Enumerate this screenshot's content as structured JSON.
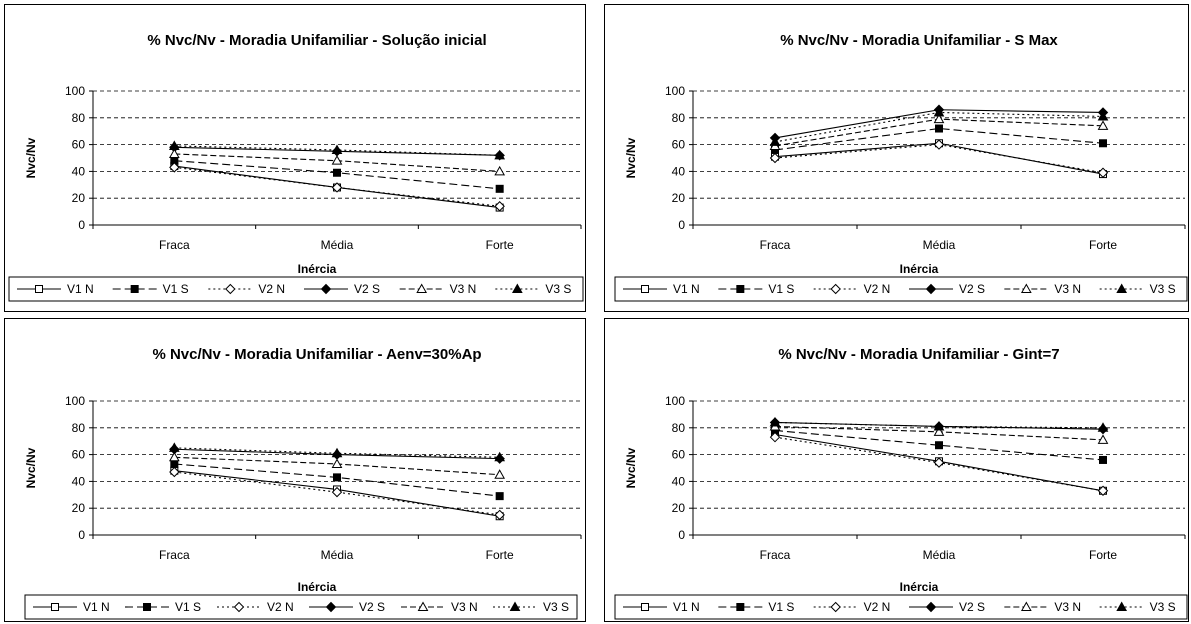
{
  "legend_styles": {
    "V1 N": {
      "dash": "",
      "marker": "square",
      "fill": "#ffffff"
    },
    "V1 S": {
      "dash": "8,4",
      "marker": "square",
      "fill": "#000000"
    },
    "V2 N": {
      "dash": "2,3",
      "marker": "diamond",
      "fill": "#ffffff"
    },
    "V2 S": {
      "dash": "",
      "marker": "diamond",
      "fill": "#000000"
    },
    "V3 N": {
      "dash": "6,3",
      "marker": "triangle",
      "fill": "#ffffff"
    },
    "V3 S": {
      "dash": "2,3",
      "marker": "triangle",
      "fill": "#000000"
    }
  },
  "chart_data": [
    {
      "type": "line",
      "title": "% Nvc/Nv - Moradia Unifamiliar - Solução inicial",
      "xlabel": "Inércia",
      "ylabel": "Nvc/Nv",
      "categories": [
        "Fraca",
        "Média",
        "Forte"
      ],
      "ylim": [
        0,
        100
      ],
      "yticks": [
        0,
        20,
        40,
        60,
        80,
        100
      ],
      "grid": true,
      "legend_position": "bottom",
      "series": [
        {
          "name": "V1 N",
          "values": [
            44,
            28,
            13
          ]
        },
        {
          "name": "V1 S",
          "values": [
            48,
            39,
            27
          ]
        },
        {
          "name": "V2 N",
          "values": [
            43,
            28,
            14
          ]
        },
        {
          "name": "V2 S",
          "values": [
            58,
            55,
            52
          ]
        },
        {
          "name": "V3 N",
          "values": [
            53,
            48,
            40
          ]
        },
        {
          "name": "V3 S",
          "values": [
            59,
            56,
            52
          ]
        }
      ]
    },
    {
      "type": "line",
      "title": "% Nvc/Nv - Moradia Unifamiliar - S Max",
      "xlabel": "Inércia",
      "ylabel": "Nvc/Nv",
      "categories": [
        "Fraca",
        "Média",
        "Forte"
      ],
      "ylim": [
        0,
        100
      ],
      "yticks": [
        0,
        20,
        40,
        60,
        80,
        100
      ],
      "grid": true,
      "legend_position": "bottom",
      "series": [
        {
          "name": "V1 N",
          "values": [
            51,
            61,
            38
          ]
        },
        {
          "name": "V1 S",
          "values": [
            56,
            72,
            61
          ]
        },
        {
          "name": "V2 N",
          "values": [
            50,
            60,
            39
          ]
        },
        {
          "name": "V2 S",
          "values": [
            65,
            86,
            84
          ]
        },
        {
          "name": "V3 N",
          "values": [
            59,
            79,
            74
          ]
        },
        {
          "name": "V3 S",
          "values": [
            62,
            84,
            81
          ]
        }
      ]
    },
    {
      "type": "line",
      "title": "% Nvc/Nv - Moradia Unifamiliar - Aenv=30%Ap",
      "xlabel": "Inércia",
      "ylabel": "Nvc/Nv",
      "categories": [
        "Fraca",
        "Média",
        "Forte"
      ],
      "ylim": [
        0,
        100
      ],
      "yticks": [
        0,
        20,
        40,
        60,
        80,
        100
      ],
      "grid": true,
      "legend_position": "bottom",
      "series": [
        {
          "name": "V1 N",
          "values": [
            48,
            34,
            14
          ]
        },
        {
          "name": "V1 S",
          "values": [
            53,
            43,
            29
          ]
        },
        {
          "name": "V2 N",
          "values": [
            47,
            32,
            15
          ]
        },
        {
          "name": "V2 S",
          "values": [
            64,
            60,
            57
          ]
        },
        {
          "name": "V3 N",
          "values": [
            58,
            53,
            45
          ]
        },
        {
          "name": "V3 S",
          "values": [
            65,
            61,
            58
          ]
        }
      ]
    },
    {
      "type": "line",
      "title": "% Nvc/Nv - Moradia Unifamiliar - Gint=7",
      "xlabel": "Inércia",
      "ylabel": "Nvc/Nv",
      "categories": [
        "Fraca",
        "Média",
        "Forte"
      ],
      "ylim": [
        0,
        100
      ],
      "yticks": [
        0,
        20,
        40,
        60,
        80,
        100
      ],
      "grid": true,
      "legend_position": "bottom",
      "series": [
        {
          "name": "V1 N",
          "values": [
            75,
            55,
            33
          ]
        },
        {
          "name": "V1 S",
          "values": [
            78,
            67,
            56
          ]
        },
        {
          "name": "V2 N",
          "values": [
            73,
            54,
            33
          ]
        },
        {
          "name": "V2 S",
          "values": [
            84,
            81,
            79
          ]
        },
        {
          "name": "V3 N",
          "values": [
            81,
            77,
            71
          ]
        },
        {
          "name": "V3 S",
          "values": [
            84,
            81,
            80
          ]
        }
      ]
    }
  ]
}
